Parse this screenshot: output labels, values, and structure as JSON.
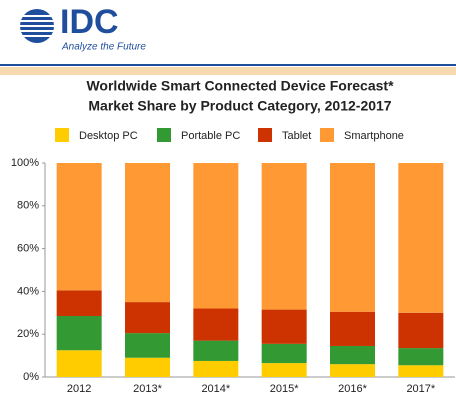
{
  "logo": {
    "name": "IDC",
    "tagline": "Analyze the Future"
  },
  "chart_data": {
    "type": "stacked_bar",
    "title": "Worldwide Smart Connected Device Forecast*",
    "subtitle": "Market Share by Product Category, 2012-2017",
    "categories": [
      "2012",
      "2013*",
      "2014*",
      "2015*",
      "2016*",
      "2017*"
    ],
    "series": [
      {
        "name": "Desktop PC",
        "color": "#ffcc00",
        "values": [
          12.5,
          9,
          7.5,
          6.5,
          6,
          5.5
        ]
      },
      {
        "name": "Portable PC",
        "color": "#339933",
        "values": [
          16,
          11.5,
          9.5,
          9,
          8.5,
          8
        ]
      },
      {
        "name": "Tablet",
        "color": "#cc3300",
        "values": [
          12,
          14.5,
          15,
          16,
          16,
          16.5
        ]
      },
      {
        "name": "Smartphone",
        "color": "#ff9933",
        "values": [
          59.5,
          65,
          68,
          68.5,
          69.5,
          70
        ]
      }
    ],
    "ylim": [
      0,
      100
    ],
    "yticks": [
      {
        "value": 0,
        "label": "0%"
      },
      {
        "value": 20,
        "label": "20%"
      },
      {
        "value": 40,
        "label": "40%"
      },
      {
        "value": 60,
        "label": "60%"
      },
      {
        "value": 80,
        "label": "80%"
      },
      {
        "value": 100,
        "label": "100%"
      }
    ],
    "legend": "top"
  }
}
